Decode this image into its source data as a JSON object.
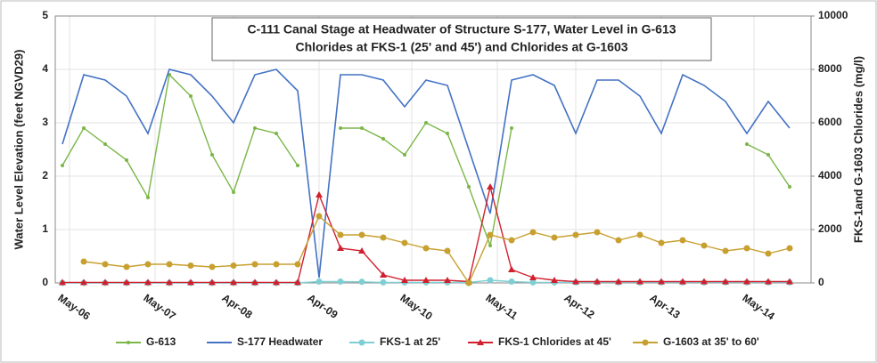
{
  "chart_data": {
    "type": "line",
    "title": [
      "C-111 Canal Stage at Headwater of Structure S-177, Water Level in G-613",
      "Chlorides at FKS-1 (25' and 45') and Chlorides at G-1603"
    ],
    "y_label": "Water Level Elevation (feet NGVD29)",
    "y2_label": "FKS-1and G-1603  Chlorides (mg/l)",
    "x": [
      "2006-04",
      "2006-07",
      "2006-10",
      "2007-01",
      "2007-04",
      "2007-07",
      "2007-10",
      "2008-01",
      "2008-04",
      "2008-07",
      "2008-10",
      "2009-01",
      "2009-04",
      "2009-07",
      "2009-10",
      "2010-01",
      "2010-04",
      "2010-07",
      "2010-10",
      "2011-01",
      "2011-04",
      "2011-07",
      "2011-10",
      "2012-01",
      "2012-04",
      "2012-07",
      "2012-10",
      "2013-01",
      "2013-04",
      "2013-07",
      "2013-10",
      "2014-01",
      "2014-04",
      "2014-07",
      "2014-10"
    ],
    "xlim": [
      "2006-03",
      "2015-01"
    ],
    "xticks": [
      {
        "value": "2006-05",
        "label": "May-06"
      },
      {
        "value": "2007-05",
        "label": "May-07"
      },
      {
        "value": "2008-04",
        "label": "Apr-08"
      },
      {
        "value": "2009-04",
        "label": "Apr-09"
      },
      {
        "value": "2010-05",
        "label": "May-10"
      },
      {
        "value": "2011-05",
        "label": "May-11"
      },
      {
        "value": "2012-04",
        "label": "Apr-12"
      },
      {
        "value": "2013-04",
        "label": "Apr-13"
      },
      {
        "value": "2014-05",
        "label": "May-14"
      }
    ],
    "ylim": [
      0,
      5
    ],
    "yticks": [
      0,
      1,
      2,
      3,
      4,
      5
    ],
    "y2lim": [
      0,
      10000
    ],
    "y2ticks": [
      0,
      2000,
      4000,
      6000,
      8000,
      10000
    ],
    "grid": true,
    "legend": "bottom",
    "series": [
      {
        "name": "G-613",
        "color": "#7ab648",
        "marker": "dot",
        "values": [
          2.2,
          2.9,
          2.6,
          2.3,
          1.6,
          3.9,
          3.5,
          2.4,
          1.7,
          2.9,
          2.8,
          2.2,
          null,
          2.9,
          2.9,
          2.7,
          2.4,
          3.0,
          2.8,
          1.8,
          0.7,
          2.9,
          null,
          null,
          null,
          null,
          null,
          null,
          null,
          null,
          null,
          null,
          2.6,
          2.4,
          1.8
        ]
      },
      {
        "name": "S-177 Headwater",
        "color": "#4472c4",
        "marker": "none",
        "values": [
          2.6,
          3.9,
          3.8,
          3.5,
          2.8,
          4.0,
          3.9,
          3.5,
          3.0,
          3.9,
          4.0,
          3.6,
          0.1,
          3.9,
          3.9,
          3.8,
          3.3,
          3.8,
          3.7,
          2.5,
          1.3,
          3.8,
          3.9,
          3.7,
          2.8,
          3.8,
          3.8,
          3.5,
          2.8,
          3.9,
          3.7,
          3.4,
          2.8,
          3.4,
          2.9
        ]
      },
      {
        "name": "FKS-1 at 25'",
        "color": "#7ecfd4",
        "marker": "circle",
        "axis": "y2",
        "values": [
          0,
          0,
          0,
          0,
          0,
          0,
          0,
          0,
          0,
          0,
          0,
          0,
          50,
          50,
          40,
          20,
          20,
          20,
          20,
          20,
          100,
          50,
          20,
          20,
          20,
          20,
          20,
          20,
          20,
          20,
          20,
          20,
          20,
          20,
          20
        ]
      },
      {
        "name": "FKS-1 Chlorides at 45'",
        "color": "#d0202e",
        "marker": "triangle",
        "axis": "y2",
        "values": [
          20,
          20,
          20,
          20,
          20,
          20,
          20,
          20,
          20,
          20,
          20,
          20,
          3300,
          1300,
          1200,
          300,
          100,
          100,
          100,
          50,
          3600,
          500,
          200,
          100,
          50,
          50,
          50,
          50,
          50,
          50,
          50,
          50,
          50,
          50,
          50
        ]
      },
      {
        "name": "G-1603 at 35' to 60'",
        "color": "#c8a030",
        "marker": "circle",
        "axis": "y2",
        "values": [
          null,
          800,
          700,
          600,
          700,
          700,
          650,
          600,
          650,
          700,
          700,
          700,
          2500,
          1800,
          1800,
          1700,
          1500,
          1300,
          1200,
          0,
          1800,
          1600,
          1900,
          1700,
          1800,
          1900,
          1600,
          1800,
          1500,
          1600,
          1400,
          1200,
          1300,
          1100,
          1300
        ]
      }
    ]
  }
}
